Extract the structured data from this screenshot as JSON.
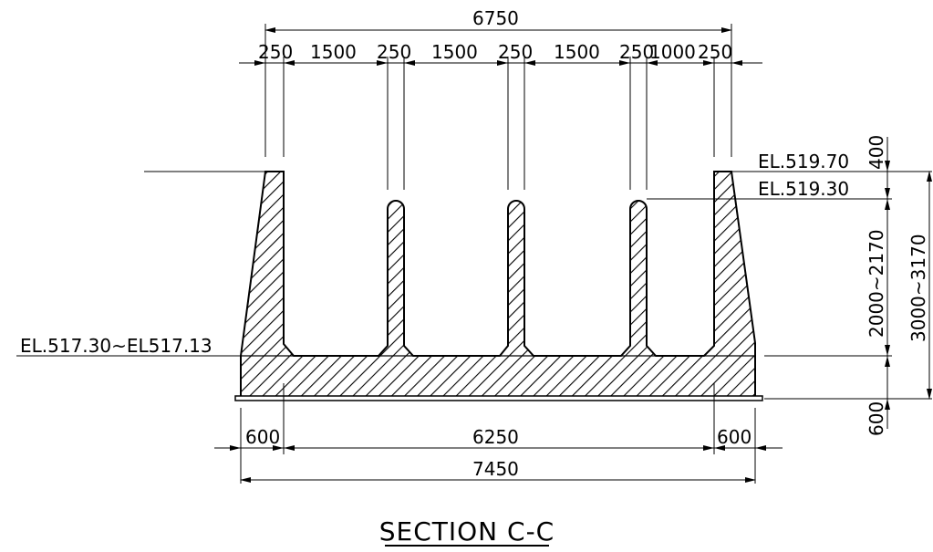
{
  "drawing": {
    "title": "SECTION C-C",
    "elevations": {
      "top_wall": "EL.519.70",
      "top_pier": "EL.519.30",
      "slab_top": "EL.517.30~EL517.13"
    },
    "top_dimensions": {
      "overall": "6750",
      "segments": [
        "250",
        "1500",
        "250",
        "1500",
        "250",
        "1500",
        "250",
        "1000",
        "250"
      ]
    },
    "bottom_dimensions": {
      "left_footing": "600",
      "inner_width": "6250",
      "right_footing": "600",
      "overall": "7450"
    },
    "vertical_dimensions": {
      "top_offset": "400",
      "pier_height": "2000~2170",
      "wall_height": "3000~3170",
      "slab_thickness": "600"
    },
    "colors": {
      "line": "#000000",
      "background": "#ffffff"
    }
  }
}
